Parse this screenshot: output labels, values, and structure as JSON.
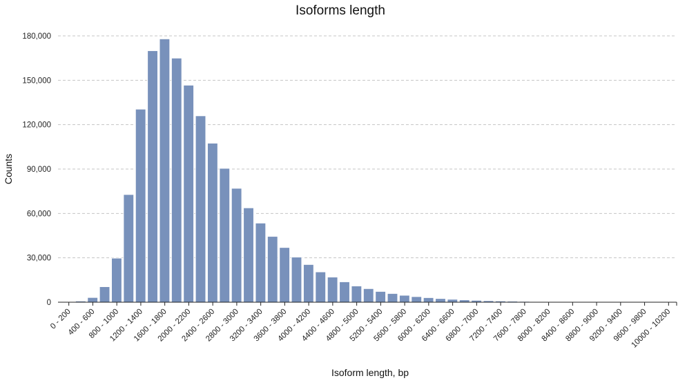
{
  "chart_data": {
    "type": "bar",
    "title": "Isoforms length",
    "xlabel": "Isoform length, bp",
    "ylabel": "Counts",
    "ylim": [
      0,
      180000
    ],
    "yticks": [
      "0",
      "30,000",
      "60,000",
      "90,000",
      "120,000",
      "150,000",
      "180,000"
    ],
    "ytick_values": [
      0,
      30000,
      60000,
      90000,
      120000,
      150000,
      180000
    ],
    "grid": true,
    "bar_color": "#7891bb",
    "bar_edge_color": "#ffffff",
    "categories": [
      "0 - 200",
      "200 - 400",
      "400 - 600",
      "600 - 800",
      "800 - 1000",
      "1000 - 1200",
      "1200 - 1400",
      "1400 - 1600",
      "1600 - 1800",
      "1800 - 2000",
      "2000 - 2200",
      "2200 - 2400",
      "2400 - 2600",
      "2600 - 2800",
      "2800 - 3000",
      "3000 - 3200",
      "3200 - 3400",
      "3400 - 3600",
      "3600 - 3800",
      "3800 - 4000",
      "4000 - 4200",
      "4200 - 4400",
      "4400 - 4600",
      "4600 - 4800",
      "4800 - 5000",
      "5000 - 5200",
      "5200 - 5400",
      "5400 - 5600",
      "5600 - 5800",
      "5800 - 6000",
      "6000 - 6200",
      "6200 - 6400",
      "6400 - 6600",
      "6600 - 6800",
      "6800 - 7000",
      "7000 - 7200",
      "7200 - 7400",
      "7400 - 7600",
      "7600 - 7800",
      "7800 - 8000",
      "8000 - 8200",
      "8200 - 8400",
      "8400 - 8600",
      "8600 - 8800",
      "8800 - 9000",
      "9000 - 9200",
      "9200 - 9400",
      "9400 - 9600",
      "9600 - 9800",
      "9800 - 10000",
      "10000 - 10200"
    ],
    "visible_tick_labels": [
      "0 - 200",
      "400 - 600",
      "800 - 1000",
      "1200 - 1400",
      "1600 - 1800",
      "2000 - 2200",
      "2400 - 2600",
      "2800 - 3000",
      "3200 - 3400",
      "3600 - 3800",
      "4000 - 4200",
      "4400 - 4600",
      "4800 - 5000",
      "5200 - 5400",
      "5600 - 5800",
      "6000 - 6200",
      "6400 - 6600",
      "6800 - 7000",
      "7200 - 7400",
      "7600 - 7800",
      "8000 - 8200",
      "8400 - 8600",
      "8800 - 9000",
      "9200 - 9400",
      "9600 - 9800",
      "10000 - 10200"
    ],
    "values": [
      300,
      800,
      3200,
      10500,
      29800,
      72800,
      130500,
      170000,
      178000,
      165000,
      146700,
      126000,
      107500,
      90500,
      77000,
      63800,
      53500,
      44500,
      37000,
      30500,
      25500,
      20500,
      17000,
      13800,
      11000,
      9200,
      7300,
      5900,
      4700,
      3800,
      3100,
      2500,
      2000,
      1600,
      1300,
      1050,
      850,
      700,
      560,
      450,
      370,
      300,
      250,
      200,
      170,
      140,
      120,
      100,
      80,
      70,
      60
    ]
  }
}
